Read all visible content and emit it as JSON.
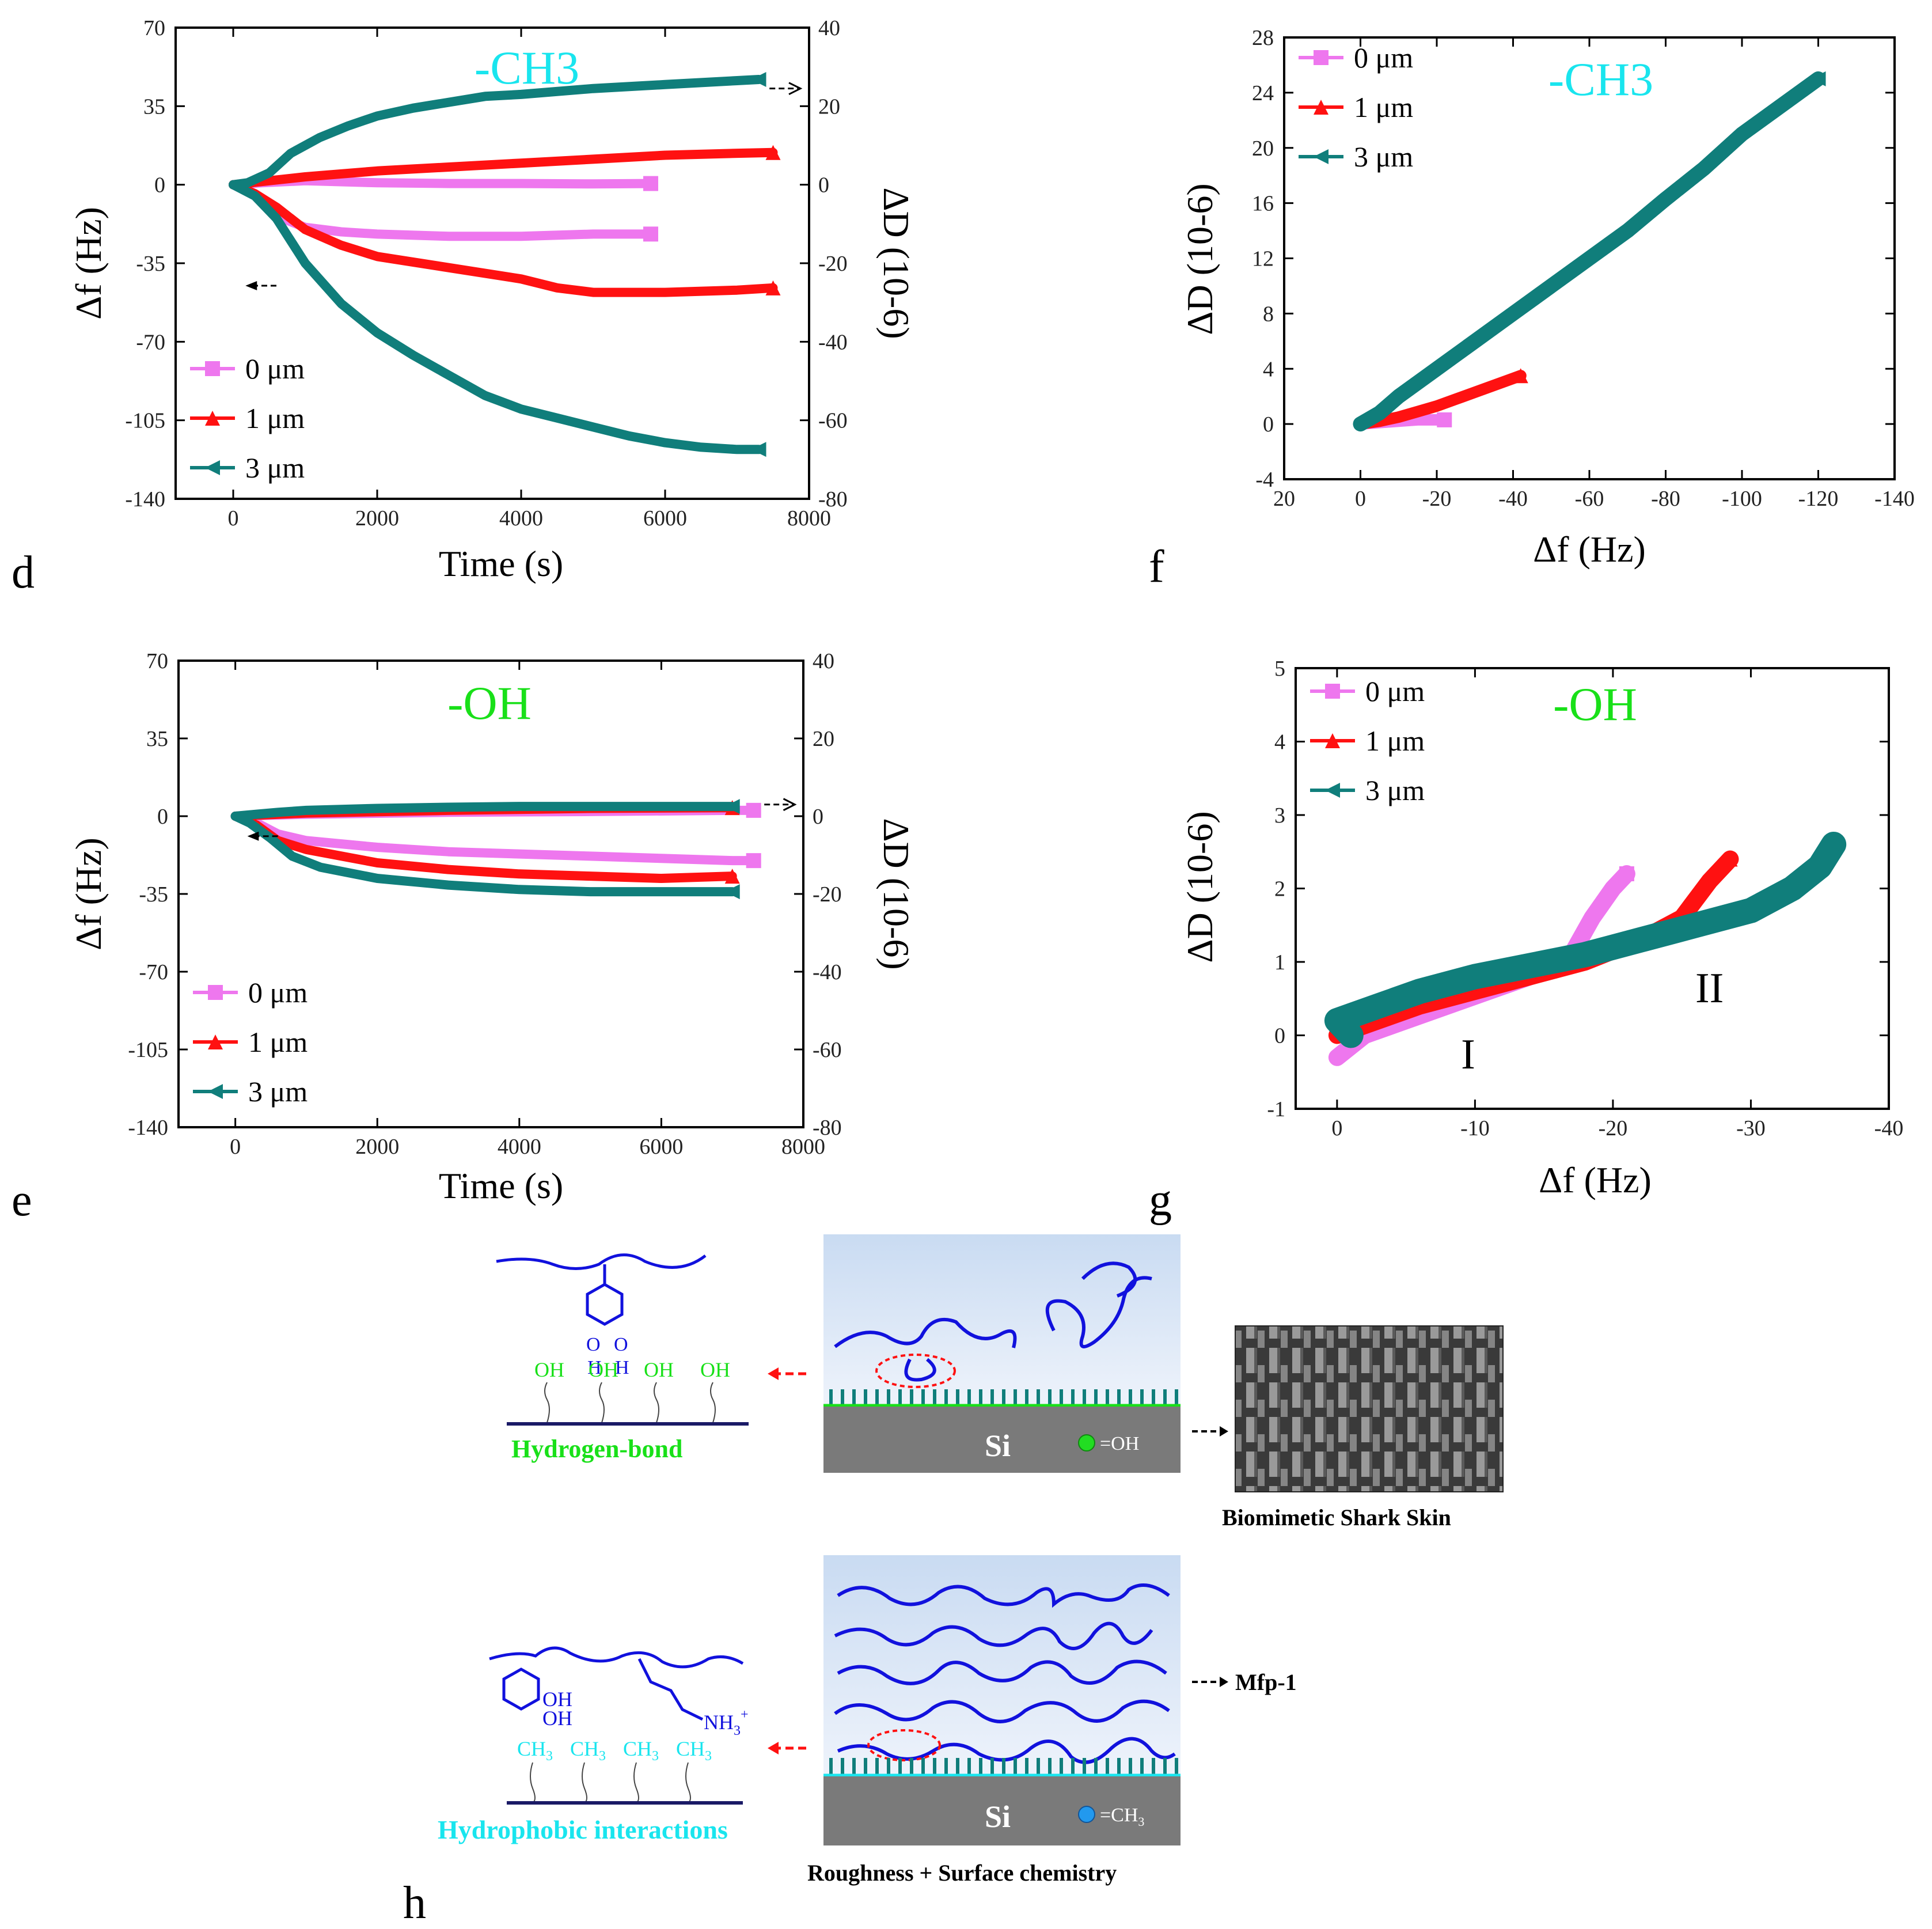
{
  "colors": {
    "s0": "#ee77ee",
    "s1": "#ff1111",
    "s3": "#107e7b",
    "ch3": "#19e5ee",
    "oh": "#19e019",
    "blue": "#1111dd"
  },
  "legend_labels": [
    "0 μm",
    "1 μm",
    "3 μm"
  ],
  "chart_data": [
    {
      "id": "d",
      "type": "line",
      "panel_label": "d",
      "title": "-CH3",
      "title_sub": "3",
      "xlabel": "Time (s)",
      "ylabel": "Δf (Hz)",
      "y2label": "ΔD (10-6)",
      "xlim": [
        -800,
        8000
      ],
      "ylim": [
        -140,
        70
      ],
      "y2lim": [
        -80,
        40
      ],
      "xticks": [
        0,
        2000,
        4000,
        6000,
        8000
      ],
      "yticks": [
        70,
        35,
        0,
        -35,
        -70,
        -105,
        -140
      ],
      "y2ticks": [
        40,
        20,
        0,
        -20,
        -40,
        -60,
        -80
      ],
      "series": [
        {
          "name": "0 μm",
          "axis": "f",
          "x": [
            0,
            200,
            400,
            600,
            1000,
            1500,
            2000,
            3000,
            4000,
            5000,
            5800
          ],
          "y": [
            0,
            -3,
            -6,
            -14,
            -19,
            -21,
            -22,
            -23,
            -23,
            -22,
            -22
          ]
        },
        {
          "name": "0 μm",
          "axis": "D",
          "x": [
            0,
            400,
            1000,
            2000,
            3000,
            4000,
            5000,
            5800
          ],
          "y": [
            0,
            0.5,
            1,
            0.5,
            0.3,
            0.3,
            0.2,
            0.3
          ]
        },
        {
          "name": "1 μm",
          "axis": "f",
          "x": [
            0,
            300,
            600,
            1000,
            1500,
            2000,
            3000,
            4000,
            4500,
            5000,
            6000,
            7000,
            7500
          ],
          "y": [
            0,
            -4,
            -10,
            -20,
            -27,
            -32,
            -37,
            -42,
            -46,
            -48,
            -48,
            -47,
            -46
          ]
        },
        {
          "name": "1 μm",
          "axis": "D",
          "x": [
            0,
            500,
            1000,
            2000,
            3000,
            4000,
            5000,
            6000,
            7000,
            7500
          ],
          "y": [
            0,
            1,
            2,
            3.5,
            4.5,
            5.5,
            6.5,
            7.5,
            8,
            8.2
          ]
        },
        {
          "name": "3 μm",
          "axis": "f",
          "x": [
            0,
            300,
            600,
            1000,
            1500,
            2000,
            2500,
            3000,
            3500,
            4000,
            4500,
            5000,
            5500,
            6000,
            6500,
            7000,
            7300
          ],
          "y": [
            0,
            -5,
            -15,
            -35,
            -53,
            -66,
            -76,
            -85,
            -94,
            -100,
            -104,
            -108,
            -112,
            -115,
            -117,
            -118,
            -118
          ]
        },
        {
          "name": "3 μm",
          "axis": "D",
          "x": [
            0,
            200,
            500,
            800,
            1200,
            1600,
            2000,
            2500,
            3000,
            3500,
            4000,
            5000,
            6000,
            7000,
            7300
          ],
          "y": [
            0,
            0.5,
            3,
            8,
            12,
            15,
            17.5,
            19.5,
            21,
            22.5,
            23,
            24.5,
            25.5,
            26.5,
            26.8
          ]
        }
      ],
      "legend": [
        "0 μm",
        "1 μm",
        "3 μm"
      ]
    },
    {
      "id": "e",
      "type": "line",
      "panel_label": "e",
      "title": "-OH",
      "xlabel": "Time (s)",
      "ylabel": "Δf (Hz)",
      "y2label": "ΔD (10-6)",
      "xlim": [
        -800,
        8000
      ],
      "ylim": [
        -140,
        70
      ],
      "y2lim": [
        -80,
        40
      ],
      "xticks": [
        0,
        2000,
        4000,
        6000,
        8000
      ],
      "yticks": [
        70,
        35,
        0,
        -35,
        -70,
        -105,
        -140
      ],
      "y2ticks": [
        40,
        20,
        0,
        -20,
        -40,
        -60,
        -80
      ],
      "series": [
        {
          "name": "0 μm",
          "axis": "f",
          "x": [
            0,
            300,
            600,
            1000,
            2000,
            3000,
            4000,
            5000,
            6000,
            7000,
            7300
          ],
          "y": [
            0,
            -3,
            -8,
            -11,
            -14,
            -16,
            -17,
            -18,
            -19,
            -20,
            -20
          ]
        },
        {
          "name": "0 μm",
          "axis": "D",
          "x": [
            0,
            1000,
            3000,
            5000,
            7000,
            7300
          ],
          "y": [
            0,
            0.5,
            1,
            1.2,
            1.5,
            1.5
          ]
        },
        {
          "name": "1 μm",
          "axis": "f",
          "x": [
            0,
            300,
            600,
            1000,
            2000,
            3000,
            4000,
            5000,
            6000,
            7000
          ],
          "y": [
            0,
            -4,
            -11,
            -15,
            -21,
            -24,
            -26,
            -27,
            -28,
            -27
          ]
        },
        {
          "name": "1 μm",
          "axis": "D",
          "x": [
            0,
            1000,
            3000,
            5000,
            7000
          ],
          "y": [
            0,
            0.8,
            1.5,
            2,
            2.2
          ]
        },
        {
          "name": "3 μm",
          "axis": "f",
          "x": [
            0,
            200,
            500,
            800,
            1200,
            2000,
            3000,
            4000,
            5000,
            6000,
            7000
          ],
          "y": [
            0,
            -3,
            -10,
            -18,
            -23,
            -28,
            -31,
            -33,
            -34,
            -34,
            -34
          ]
        },
        {
          "name": "3 μm",
          "axis": "D",
          "x": [
            0,
            300,
            600,
            1000,
            2000,
            3000,
            4000,
            5000,
            6000,
            7000
          ],
          "y": [
            0,
            0.5,
            1,
            1.5,
            2,
            2.3,
            2.5,
            2.5,
            2.5,
            2.5
          ]
        }
      ],
      "legend": [
        "0 μm",
        "1 μm",
        "3 μm"
      ]
    },
    {
      "id": "f",
      "type": "scatter",
      "panel_label": "f",
      "title": "-CH3",
      "title_sub": "3",
      "xlabel": "Δf (Hz)",
      "ylabel": "ΔD (10-6)",
      "xlim": [
        20,
        -140
      ],
      "ylim": [
        -4,
        28
      ],
      "xticks": [
        20,
        0,
        -20,
        -40,
        -60,
        -80,
        -100,
        -120,
        -140
      ],
      "yticks": [
        28,
        24,
        20,
        16,
        12,
        8,
        4,
        0,
        -4
      ],
      "series": [
        {
          "name": "0 μm",
          "x": [
            0,
            -5,
            -10,
            -15,
            -20,
            -22
          ],
          "y": [
            0,
            0.1,
            0.2,
            0.3,
            0.3,
            0.3
          ]
        },
        {
          "name": "1 μm",
          "x": [
            0,
            -5,
            -10,
            -15,
            -20,
            -25,
            -30,
            -35,
            -40,
            -42
          ],
          "y": [
            0,
            0.2,
            0.5,
            0.9,
            1.3,
            1.8,
            2.3,
            2.8,
            3.3,
            3.5
          ]
        },
        {
          "name": "3 μm",
          "x": [
            0,
            -5,
            -10,
            -20,
            -30,
            -40,
            -50,
            -60,
            -70,
            -80,
            -90,
            -100,
            -110,
            -120
          ],
          "y": [
            0,
            0.8,
            2,
            4,
            6,
            8,
            10,
            12,
            14,
            16.3,
            18.5,
            21,
            23,
            25
          ]
        }
      ],
      "legend": [
        "0 μm",
        "1 μm",
        "3 μm"
      ]
    },
    {
      "id": "g",
      "type": "scatter",
      "panel_label": "g",
      "title": "-OH",
      "xlabel": "Δf (Hz)",
      "ylabel": "ΔD (10-6)",
      "xlim": [
        3,
        -40
      ],
      "ylim": [
        -1,
        5
      ],
      "xticks": [
        0,
        -10,
        -20,
        -30,
        -40
      ],
      "yticks": [
        5,
        4,
        3,
        2,
        1,
        0,
        -1
      ],
      "series": [
        {
          "name": "0 μm",
          "x": [
            0,
            -2,
            -5,
            -8,
            -11,
            -14,
            -17,
            -18.5,
            -20,
            -21
          ],
          "y": [
            -0.3,
            0,
            0.2,
            0.4,
            0.6,
            0.8,
            1.1,
            1.6,
            2.0,
            2.2
          ]
        },
        {
          "name": "1 μm",
          "x": [
            0,
            -3,
            -6,
            -10,
            -14,
            -18,
            -22,
            -25,
            -27,
            -28.5
          ],
          "y": [
            0,
            0.2,
            0.4,
            0.6,
            0.8,
            1.0,
            1.3,
            1.6,
            2.1,
            2.4
          ]
        },
        {
          "name": "3 μm",
          "x": [
            -1,
            0,
            -3,
            -6,
            -10,
            -14,
            -18,
            -22,
            -26,
            -30,
            -33,
            -35,
            -36
          ],
          "y": [
            0,
            0.2,
            0.4,
            0.6,
            0.8,
            0.95,
            1.1,
            1.3,
            1.5,
            1.7,
            2.0,
            2.3,
            2.6
          ]
        }
      ],
      "annotations": [
        "I",
        "II"
      ],
      "legend": [
        "0 μm",
        "1 μm",
        "3 μm"
      ]
    }
  ],
  "schematic": {
    "panel_label": "h",
    "oh_groups": [
      "OH",
      "OH",
      "OH",
      "OH"
    ],
    "catechol_o": "O",
    "catechol_h": "H",
    "hbond_caption": "Hydrogen-bond",
    "si_label": "Si",
    "oh_marker": "=OH",
    "ch3_marker_main": "=CH",
    "ch3_marker_sub": "3",
    "shark_caption": "Biomimetic Shark Skin",
    "mfp_label": "Mfp-1",
    "cat_oh1": "OH",
    "cat_oh2": "OH",
    "nh3_main": "NH",
    "nh3_sub": "3",
    "nh3_sup": "+",
    "ch3_group_main": "CH",
    "ch3_group_sub": "3",
    "hydrophobic_caption": "Hydrophobic interactions",
    "roughness_caption": "Roughness + Surface chemistry"
  }
}
